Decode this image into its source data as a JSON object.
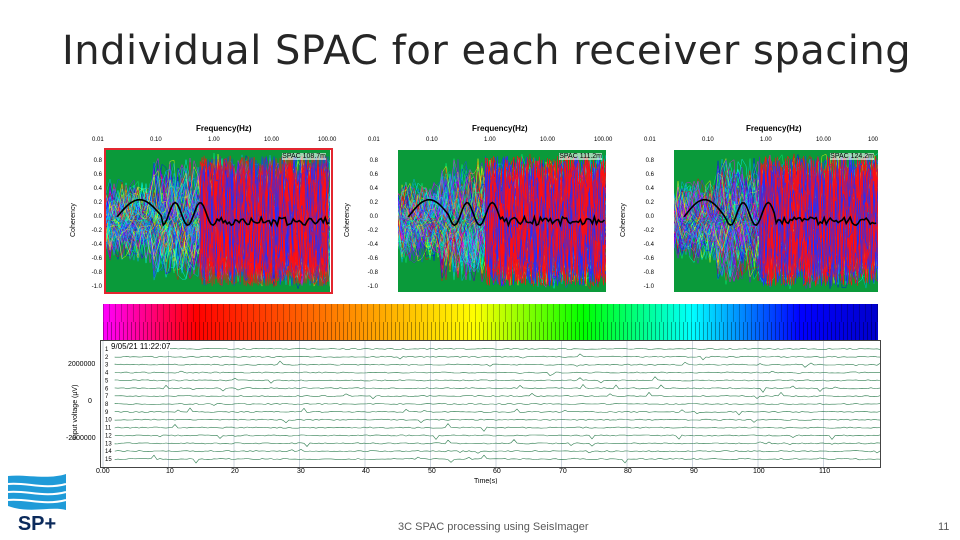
{
  "slide": {
    "title": "Individual SPAC for each receiver spacing",
    "footer": "3C SPAC processing using SeisImager",
    "page_number": "11",
    "logo_text": "SP+"
  },
  "spac_panels": [
    {
      "label": "SPAC 108.7m",
      "xlabel": "Frequency(Hz)",
      "ylabel": "Coherency",
      "xticks": [
        "0.01",
        "0.10",
        "1.00",
        "10.00",
        "100.00"
      ],
      "yticks": [
        "0.8",
        "0.6",
        "0.4",
        "0.2",
        "0.0",
        "-0.2",
        "-0.4",
        "-0.6",
        "-0.8",
        "-1.0"
      ],
      "selected": true
    },
    {
      "label": "SPAC 111.2m",
      "xlabel": "Frequency(Hz)",
      "ylabel": "Coherency",
      "xticks": [
        "0.01",
        "0.10",
        "1.00",
        "10.00",
        "100.00"
      ],
      "yticks": [
        "0.8",
        "0.6",
        "0.4",
        "0.2",
        "0.0",
        "-0.2",
        "-0.4",
        "-0.6",
        "-0.8",
        "-1.0"
      ],
      "selected": false
    },
    {
      "label": "SPAC 124.2m",
      "xlabel": "Frequency(Hz)",
      "ylabel": "Coherency",
      "xticks": [
        "0.01",
        "0.10",
        "1.00",
        "10.00",
        "100"
      ],
      "yticks": [
        "0.8",
        "0.6",
        "0.4",
        "0.2",
        "0.0",
        "-0.2",
        "-0.4",
        "-0.6",
        "-0.8",
        "-1.0"
      ],
      "selected": false
    }
  ],
  "waveform": {
    "timestamp": "9/05/21 11:22:07",
    "ylabel": "Input voltage (µV)",
    "yticks": [
      "2000000",
      "0",
      "-2000000"
    ],
    "xticks": [
      "0.00",
      "10",
      "20",
      "30",
      "40",
      "50",
      "60",
      "70",
      "80",
      "90",
      "100",
      "110"
    ],
    "xlabel": "Time(s)",
    "channels": [
      "1",
      "2",
      "3",
      "4",
      "5",
      "6",
      "7",
      "8",
      "9",
      "10",
      "11",
      "12",
      "13",
      "14",
      "15"
    ]
  },
  "colors": {
    "selection": "#e3262f",
    "plot_bg": "#0a9a3a",
    "trace": "#2e7d4f"
  }
}
